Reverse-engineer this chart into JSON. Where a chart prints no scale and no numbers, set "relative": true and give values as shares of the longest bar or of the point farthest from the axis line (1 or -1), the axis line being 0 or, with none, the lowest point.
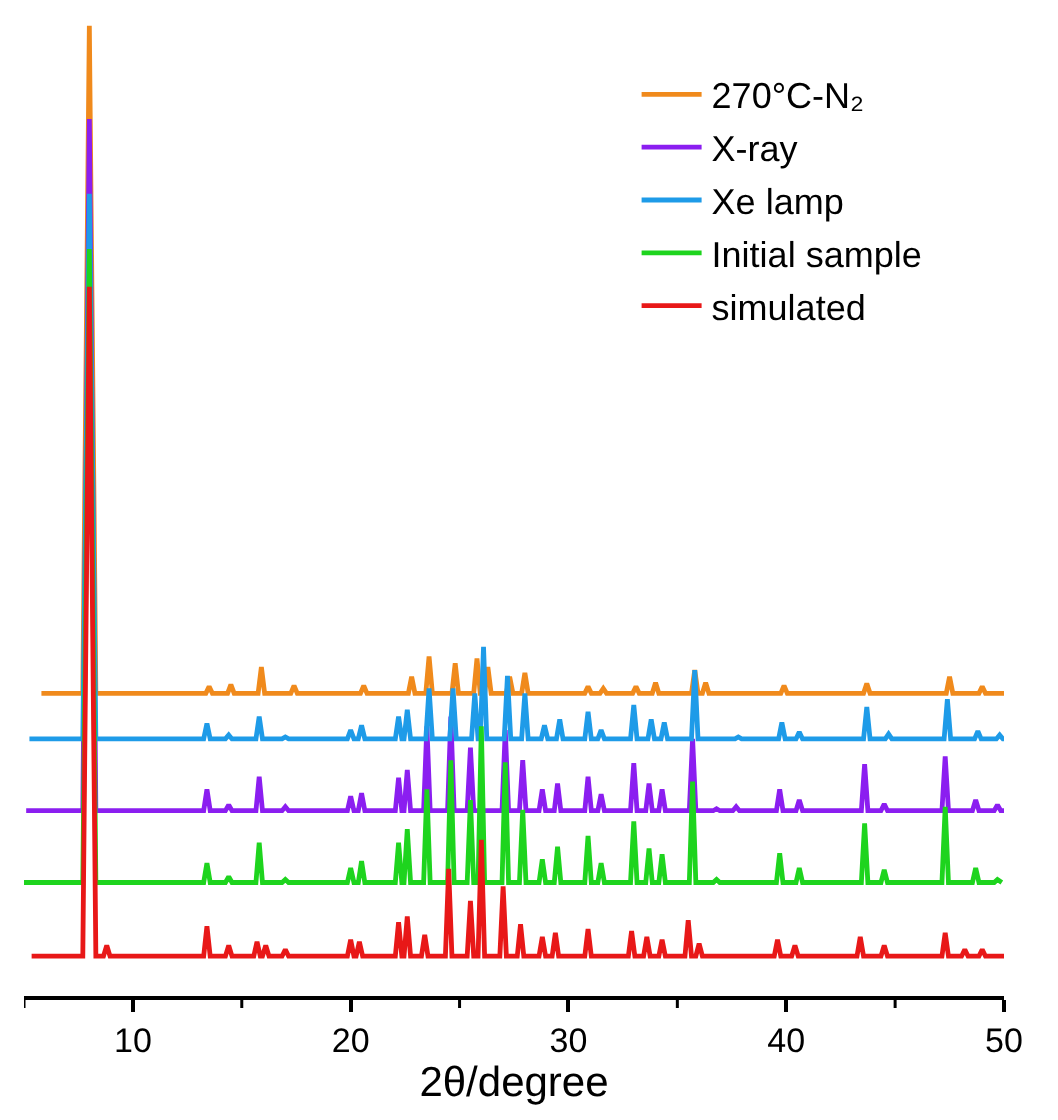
{
  "chart_data": {
    "type": "line",
    "relative": true,
    "xlabel": "2θ/degree",
    "xlim": [
      5,
      50
    ],
    "xticks": [
      {
        "value": 5,
        "label": null
      },
      10,
      {
        "value": 15,
        "label": null
      },
      20,
      {
        "value": 25,
        "label": null
      },
      30,
      {
        "value": 35,
        "label": null
      },
      40,
      {
        "value": 45,
        "label": null
      },
      50
    ],
    "grid": false,
    "legend": "top right",
    "marker": "none",
    "line_style": "solid",
    "series": [
      {
        "name": "270°C-N₂",
        "color": "#f08a1c",
        "x": [
          5.8,
          7.7,
          8.0,
          8.3,
          13.35,
          13.5,
          13.65,
          14.35,
          14.5,
          14.65,
          15.75,
          15.9,
          16.05,
          17.25,
          17.4,
          17.55,
          20.45,
          20.6,
          20.75,
          22.65,
          22.8,
          22.95,
          23.45,
          23.6,
          23.75,
          24.65,
          24.8,
          24.95,
          25.65,
          25.8,
          25.95,
          26.15,
          26.3,
          26.45,
          27.15,
          27.3,
          27.45,
          27.85,
          28.0,
          28.15,
          30.75,
          30.9,
          31.05,
          31.45,
          31.6,
          31.75,
          32.95,
          33.1,
          33.25,
          33.85,
          34.0,
          34.15,
          35.65,
          35.8,
          35.95,
          36.15,
          36.3,
          36.45,
          39.75,
          39.9,
          40.05,
          43.55,
          43.7,
          43.85,
          47.35,
          47.5,
          47.65,
          48.85,
          49.0,
          49.15,
          50.0
        ],
        "values": [
          0.312,
          0.312,
          1.0,
          0.312,
          0.312,
          0.319,
          0.312,
          0.312,
          0.321,
          0.312,
          0.312,
          0.339,
          0.312,
          0.312,
          0.32,
          0.312,
          0.312,
          0.32,
          0.312,
          0.312,
          0.329,
          0.312,
          0.312,
          0.35,
          0.312,
          0.312,
          0.343,
          0.312,
          0.312,
          0.348,
          0.312,
          0.312,
          0.339,
          0.312,
          0.312,
          0.329,
          0.312,
          0.312,
          0.333,
          0.312,
          0.312,
          0.319,
          0.312,
          0.312,
          0.317,
          0.312,
          0.312,
          0.319,
          0.312,
          0.312,
          0.323,
          0.312,
          0.312,
          0.336,
          0.312,
          0.312,
          0.323,
          0.312,
          0.312,
          0.32,
          0.312,
          0.312,
          0.322,
          0.312,
          0.312,
          0.329,
          0.312,
          0.312,
          0.319,
          0.312,
          0.312
        ]
      },
      {
        "name": "X-ray",
        "color": "#8b1ef0",
        "x": [
          5.1,
          7.7,
          8.0,
          8.3,
          13.25,
          13.4,
          13.55,
          14.25,
          14.4,
          14.55,
          15.65,
          15.8,
          15.95,
          16.85,
          17.0,
          17.15,
          19.85,
          20.0,
          20.15,
          20.35,
          20.5,
          20.65,
          22.05,
          22.2,
          22.35,
          22.45,
          22.6,
          22.75,
          23.35,
          23.5,
          23.65,
          24.45,
          24.6,
          24.75,
          25.35,
          25.5,
          25.65,
          25.85,
          26.0,
          26.15,
          26.95,
          27.1,
          27.25,
          27.75,
          27.9,
          28.05,
          28.65,
          28.8,
          28.95,
          29.35,
          29.5,
          29.65,
          30.75,
          30.9,
          31.05,
          31.35,
          31.5,
          31.65,
          32.85,
          33.0,
          33.15,
          33.55,
          33.7,
          33.85,
          34.15,
          34.3,
          34.45,
          35.55,
          35.7,
          35.85,
          36.65,
          36.8,
          36.95,
          37.55,
          37.7,
          37.85,
          39.55,
          39.7,
          39.85,
          40.45,
          40.6,
          40.75,
          43.45,
          43.6,
          43.75,
          44.35,
          44.5,
          44.65,
          47.15,
          47.3,
          47.45,
          48.55,
          48.7,
          48.85,
          49.55,
          49.7,
          49.85,
          50.0
        ],
        "values": [
          0.191,
          0.191,
          0.904,
          0.191,
          0.191,
          0.213,
          0.191,
          0.191,
          0.197,
          0.191,
          0.191,
          0.226,
          0.191,
          0.191,
          0.195,
          0.191,
          0.191,
          0.206,
          0.191,
          0.191,
          0.209,
          0.191,
          0.191,
          0.225,
          0.191,
          0.191,
          0.233,
          0.191,
          0.191,
          0.278,
          0.191,
          0.191,
          0.288,
          0.191,
          0.191,
          0.256,
          0.191,
          0.191,
          null,
          0.191,
          0.191,
          0.274,
          0.191,
          0.191,
          0.243,
          0.191,
          0.191,
          0.213,
          0.191,
          0.191,
          0.219,
          0.191,
          0.191,
          0.226,
          0.191,
          0.191,
          0.208,
          0.191,
          0.191,
          0.24,
          0.191,
          0.191,
          0.219,
          0.191,
          0.191,
          0.213,
          0.191,
          0.191,
          0.265,
          0.191,
          0.191,
          0.193,
          0.191,
          0.191,
          0.195,
          0.191,
          0.191,
          0.213,
          0.191,
          0.191,
          0.202,
          0.191,
          0.191,
          0.239,
          0.191,
          0.191,
          0.198,
          0.191,
          0.191,
          0.247,
          0.191,
          0.191,
          0.202,
          0.191,
          0.191,
          0.197,
          0.191,
          0.191
        ]
      },
      {
        "name": "Xe lamp",
        "color": "#1e9be8",
        "x": [
          5.25,
          7.7,
          8.0,
          8.3,
          13.25,
          13.4,
          13.55,
          14.25,
          14.4,
          14.55,
          15.65,
          15.8,
          15.95,
          16.85,
          17.0,
          17.15,
          19.85,
          20.0,
          20.15,
          20.35,
          20.5,
          20.65,
          22.05,
          22.2,
          22.35,
          22.45,
          22.6,
          22.75,
          23.45,
          23.6,
          23.75,
          24.55,
          24.7,
          24.85,
          25.55,
          25.7,
          25.85,
          25.95,
          26.1,
          26.25,
          27.05,
          27.2,
          27.35,
          27.85,
          28.0,
          28.15,
          28.75,
          28.9,
          29.05,
          29.45,
          29.6,
          29.75,
          30.75,
          30.9,
          31.05,
          31.35,
          31.5,
          31.65,
          32.85,
          33.0,
          33.15,
          33.65,
          33.8,
          33.95,
          34.25,
          34.4,
          34.55,
          35.65,
          35.8,
          35.95,
          37.65,
          37.8,
          37.95,
          39.65,
          39.8,
          39.95,
          40.45,
          40.6,
          40.75,
          43.55,
          43.7,
          43.85,
          44.55,
          44.7,
          44.85,
          47.25,
          47.4,
          47.55,
          48.65,
          48.8,
          48.95,
          49.65,
          49.8,
          49.95,
          50.0
        ],
        "values": [
          0.265,
          0.265,
          0.827,
          0.265,
          0.265,
          0.281,
          0.265,
          0.265,
          0.269,
          0.265,
          0.265,
          0.288,
          0.265,
          0.265,
          0.267,
          0.265,
          0.265,
          0.274,
          0.265,
          0.265,
          0.279,
          0.265,
          0.265,
          0.288,
          0.265,
          0.265,
          0.295,
          0.265,
          0.265,
          0.317,
          0.265,
          0.265,
          0.317,
          0.265,
          0.265,
          0.312,
          0.265,
          0.265,
          0.36,
          0.265,
          0.265,
          0.33,
          0.265,
          0.265,
          0.312,
          0.265,
          0.265,
          0.279,
          0.265,
          0.265,
          0.285,
          0.265,
          0.265,
          0.293,
          0.265,
          0.265,
          0.274,
          0.265,
          0.265,
          0.3,
          0.265,
          0.265,
          0.285,
          0.265,
          0.265,
          0.282,
          0.265,
          0.265,
          0.336,
          0.265,
          0.265,
          0.267,
          0.265,
          0.265,
          0.282,
          0.265,
          0.265,
          0.272,
          0.265,
          0.265,
          0.298,
          0.265,
          0.265,
          0.27,
          0.265,
          0.265,
          0.306,
          0.265,
          0.265,
          0.273,
          0.265,
          0.265,
          0.269,
          0.265,
          0.265
        ]
      },
      {
        "name": "Initial sample",
        "color": "#1ed41e",
        "x": [
          5.0,
          7.7,
          8.0,
          8.3,
          13.25,
          13.4,
          13.55,
          14.25,
          14.4,
          14.55,
          15.65,
          15.8,
          15.95,
          16.85,
          17.0,
          17.15,
          19.85,
          20.0,
          20.15,
          20.35,
          20.5,
          20.65,
          22.05,
          22.2,
          22.35,
          22.45,
          22.6,
          22.75,
          23.35,
          23.5,
          23.65,
          24.45,
          24.6,
          24.75,
          25.35,
          25.5,
          25.65,
          25.85,
          26.0,
          26.15,
          26.95,
          27.1,
          27.25,
          27.75,
          27.9,
          28.05,
          28.65,
          28.8,
          28.95,
          29.35,
          29.5,
          29.65,
          30.75,
          30.9,
          31.05,
          31.35,
          31.5,
          31.65,
          32.85,
          33.0,
          33.15,
          33.55,
          33.7,
          33.85,
          34.15,
          34.3,
          34.45,
          35.55,
          35.7,
          35.85,
          36.65,
          36.8,
          36.95,
          39.55,
          39.7,
          39.85,
          40.45,
          40.6,
          40.75,
          43.45,
          43.6,
          43.75,
          44.35,
          44.5,
          44.65,
          47.15,
          47.3,
          47.45,
          48.55,
          48.7,
          48.85,
          49.55,
          49.7,
          49.9
        ],
        "values": [
          0.117,
          0.117,
          0.77,
          0.117,
          0.117,
          0.137,
          0.117,
          0.117,
          0.123,
          0.117,
          0.117,
          0.158,
          0.117,
          0.117,
          0.12,
          0.117,
          0.117,
          0.132,
          0.117,
          0.117,
          0.139,
          0.117,
          0.117,
          0.158,
          0.117,
          0.117,
          0.172,
          0.117,
          0.117,
          0.213,
          0.117,
          0.117,
          0.243,
          0.117,
          0.117,
          0.202,
          0.117,
          0.117,
          0.278,
          0.117,
          0.117,
          0.241,
          0.117,
          0.117,
          0.192,
          0.117,
          0.117,
          0.141,
          0.117,
          0.117,
          0.154,
          0.117,
          0.117,
          0.165,
          0.117,
          0.117,
          0.137,
          0.117,
          0.117,
          0.18,
          0.117,
          0.117,
          0.152,
          0.117,
          0.117,
          0.146,
          0.117,
          0.117,
          0.221,
          0.117,
          0.117,
          0.12,
          0.117,
          0.117,
          0.147,
          0.117,
          0.117,
          0.132,
          0.117,
          0.117,
          0.178,
          0.117,
          0.117,
          0.13,
          0.117,
          0.117,
          0.195,
          0.117,
          0.117,
          0.132,
          0.117,
          0.117,
          0.12,
          0.117
        ]
      },
      {
        "name": "simulated",
        "color": "#e81818",
        "x": [
          5.35,
          7.7,
          8.0,
          8.3,
          8.65,
          8.8,
          8.95,
          13.25,
          13.4,
          13.55,
          14.25,
          14.4,
          14.55,
          15.55,
          15.7,
          15.85,
          15.95,
          16.1,
          16.25,
          16.85,
          17.0,
          17.15,
          19.85,
          20.0,
          20.15,
          20.25,
          20.4,
          20.55,
          22.05,
          22.2,
          22.35,
          22.45,
          22.6,
          22.75,
          23.25,
          23.4,
          23.55,
          24.35,
          24.5,
          24.65,
          25.35,
          25.5,
          25.65,
          25.85,
          26.0,
          26.15,
          26.85,
          27.0,
          27.15,
          27.65,
          27.8,
          27.95,
          28.65,
          28.8,
          28.95,
          29.25,
          29.4,
          29.55,
          30.75,
          30.9,
          31.05,
          32.75,
          32.9,
          33.05,
          33.45,
          33.6,
          33.75,
          34.15,
          34.3,
          34.45,
          35.35,
          35.5,
          35.65,
          35.85,
          36.0,
          36.15,
          39.45,
          39.6,
          39.75,
          40.25,
          40.4,
          40.55,
          43.25,
          43.4,
          43.55,
          44.35,
          44.5,
          44.65,
          47.15,
          47.3,
          47.45,
          48.05,
          48.2,
          48.35,
          48.85,
          49.0,
          49.15,
          50.0
        ],
        "values": [
          0.041,
          0.041,
          0.731,
          0.041,
          0.041,
          0.052,
          0.041,
          0.041,
          0.072,
          0.041,
          0.041,
          0.052,
          0.041,
          0.041,
          0.056,
          0.041,
          0.041,
          0.052,
          0.041,
          0.041,
          0.048,
          0.041,
          0.041,
          0.058,
          0.041,
          0.041,
          0.056,
          0.041,
          0.041,
          0.076,
          0.041,
          0.041,
          0.082,
          0.041,
          0.041,
          0.063,
          0.041,
          0.041,
          0.131,
          0.041,
          0.041,
          0.098,
          0.041,
          0.041,
          0.161,
          0.041,
          0.041,
          0.113,
          0.041,
          0.041,
          0.074,
          0.041,
          0.041,
          0.061,
          0.041,
          0.041,
          0.065,
          0.041,
          0.041,
          0.069,
          0.041,
          0.041,
          0.067,
          0.041,
          0.041,
          0.061,
          0.041,
          0.041,
          0.058,
          0.041,
          0.041,
          0.078,
          0.041,
          0.041,
          0.054,
          0.041,
          0.041,
          0.058,
          0.041,
          0.041,
          0.052,
          0.041,
          0.041,
          0.061,
          0.041,
          0.041,
          0.052,
          0.041,
          0.041,
          0.065,
          0.041,
          0.041,
          0.048,
          0.041,
          0.041,
          0.048,
          0.041,
          0.041
        ]
      }
    ]
  }
}
